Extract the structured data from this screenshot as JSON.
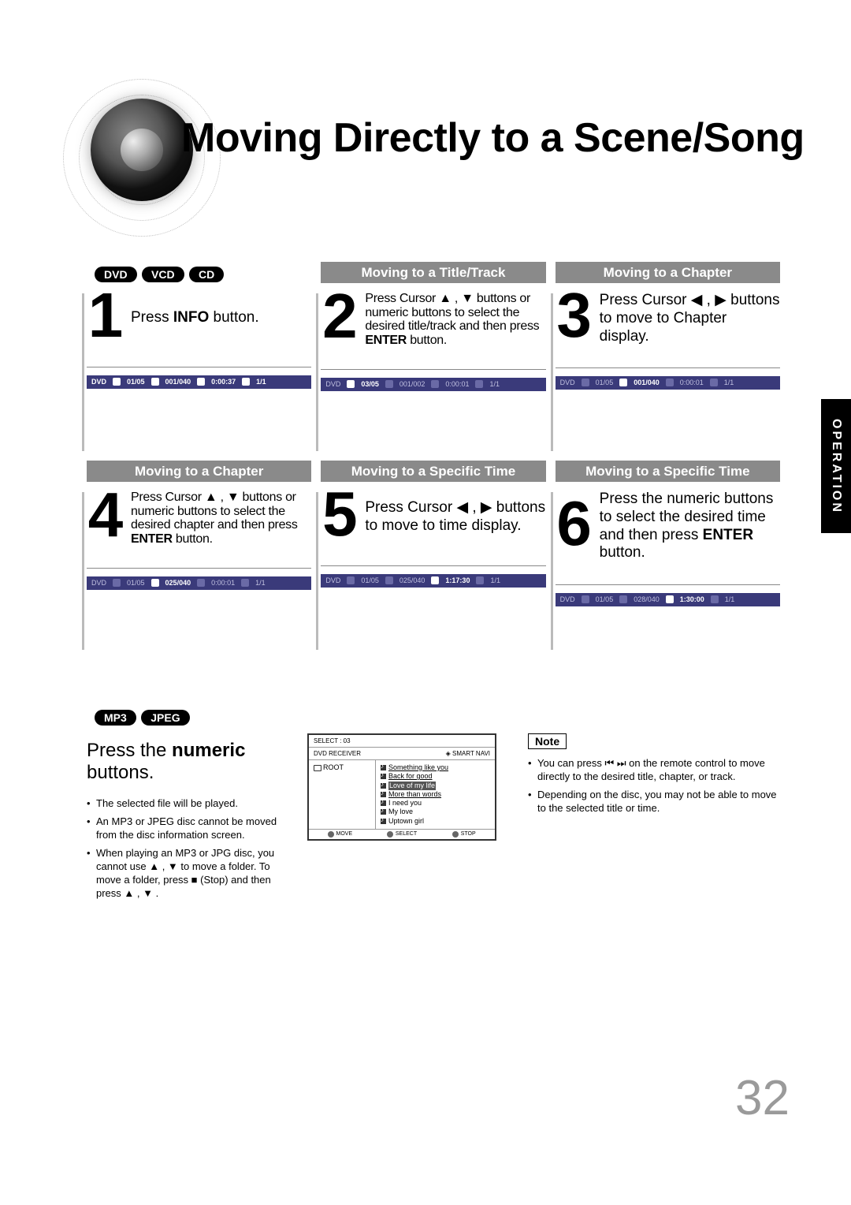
{
  "title": "Moving Directly to a Scene/Song",
  "side_tab": "OPERATION",
  "page_number": "32",
  "pills_top": [
    "DVD",
    "VCD",
    "CD"
  ],
  "pills_mid": [
    "MP3",
    "JPEG"
  ],
  "steps": [
    {
      "num": "1",
      "header": "",
      "text_html": "Press <b>INFO</b> button.",
      "osd": {
        "segments": [
          {
            "t": "DVD",
            "hi": true
          },
          {
            "ico": true,
            "hi": true
          },
          {
            "t": "01/05",
            "hi": true
          },
          {
            "ico": true,
            "hi": true
          },
          {
            "t": "001/040",
            "hi": true
          },
          {
            "ico": true,
            "hi": true
          },
          {
            "t": "0:00:37",
            "hi": true
          },
          {
            "ico": true,
            "hi": true
          },
          {
            "t": "1/1",
            "hi": true
          }
        ]
      }
    },
    {
      "num": "2",
      "header": "Moving to a Title/Track",
      "text_html": "Press Cursor ▲ , ▼ buttons or numeric buttons to select the desired title/track and then press <b>ENTER</b> button.",
      "tight": true,
      "osd": {
        "segments": [
          {
            "t": "DVD"
          },
          {
            "ico": true,
            "hi": true
          },
          {
            "t": "03/05",
            "hi": true
          },
          {
            "ico": true
          },
          {
            "t": "001/002"
          },
          {
            "ico": true
          },
          {
            "t": "0:00:01"
          },
          {
            "ico": true
          },
          {
            "t": "1/1"
          }
        ]
      }
    },
    {
      "num": "3",
      "header": "Moving to a Chapter",
      "text_html": "Press Cursor ◀ , ▶ buttons to move to Chapter display.",
      "osd": {
        "segments": [
          {
            "t": "DVD"
          },
          {
            "ico": true
          },
          {
            "t": "01/05"
          },
          {
            "ico": true,
            "hi": true
          },
          {
            "t": "001/040",
            "hi": true
          },
          {
            "ico": true
          },
          {
            "t": "0:00:01"
          },
          {
            "ico": true
          },
          {
            "t": "1/1"
          }
        ]
      }
    },
    {
      "num": "4",
      "header": "Moving to a Chapter",
      "text_html": "Press Cursor ▲ , ▼ buttons or numeric buttons to select the desired chapter and then press <b>ENTER</b> button.",
      "tight": true,
      "osd": {
        "segments": [
          {
            "t": "DVD"
          },
          {
            "ico": true
          },
          {
            "t": "01/05"
          },
          {
            "ico": true,
            "hi": true
          },
          {
            "t": "025/040",
            "hi": true
          },
          {
            "ico": true
          },
          {
            "t": "0:00:01"
          },
          {
            "ico": true
          },
          {
            "t": "1/1"
          }
        ]
      }
    },
    {
      "num": "5",
      "header": "Moving to a Specific Time",
      "text_html": "Press Cursor ◀ , ▶ buttons to move to time display.",
      "osd": {
        "segments": [
          {
            "t": "DVD"
          },
          {
            "ico": true
          },
          {
            "t": "01/05"
          },
          {
            "ico": true
          },
          {
            "t": "025/040"
          },
          {
            "ico": true,
            "hi": true
          },
          {
            "t": "1:17:30",
            "hi": true
          },
          {
            "ico": true
          },
          {
            "t": "1/1"
          }
        ]
      }
    },
    {
      "num": "6",
      "header": "Moving to a Specific Time",
      "text_html": "Press the numeric buttons to select the desired time and then press <b>ENTER</b> button.",
      "osd": {
        "segments": [
          {
            "t": "DVD"
          },
          {
            "ico": true
          },
          {
            "t": "01/05"
          },
          {
            "ico": true
          },
          {
            "t": "028/040"
          },
          {
            "ico": true,
            "hi": true
          },
          {
            "t": "1:30:00",
            "hi": true
          },
          {
            "ico": true
          },
          {
            "t": "1/1"
          }
        ]
      }
    }
  ],
  "bottom": {
    "intro_html": "Press the <b>numeric</b> buttons.",
    "notes_left": [
      "The selected file will be played.",
      "An MP3 or JPEG disc cannot be moved from the disc information screen.",
      "When playing an MP3 or JPG disc, you cannot use ▲ , ▼ to move a folder. To move a folder, press ■ (Stop) and then press ▲ , ▼ ."
    ],
    "navi": {
      "select": "SELECT :    03",
      "header_left": "DVD RECEIVER",
      "header_right": "◈ SMART NAVI",
      "root": "ROOT",
      "tracks": [
        {
          "title": "Something like you",
          "ul": true
        },
        {
          "title": "Back for good",
          "ul": true
        },
        {
          "title": "Love of my life",
          "sel": true
        },
        {
          "title": "More than words",
          "ul": true
        },
        {
          "title": "I need you"
        },
        {
          "title": "My love"
        },
        {
          "title": "Uptown girl"
        }
      ],
      "footer": [
        {
          "icon": "⊕",
          "label": "MOVE"
        },
        {
          "icon": "◉",
          "label": "SELECT"
        },
        {
          "icon": "■",
          "label": "STOP"
        }
      ]
    },
    "note_label": "Note",
    "notes_right": [
      "You can press ⏮ ⏭ on the remote control to move directly to the desired title, chapter, or track.",
      "Depending on the disc, you may not be able to move to the selected title or time."
    ]
  },
  "colors": {
    "header_bar": "#8a8a8a",
    "osd_bg": "#3a3a7a",
    "osd_text": "#c0c0e0",
    "page_num": "#9a9a9a"
  }
}
